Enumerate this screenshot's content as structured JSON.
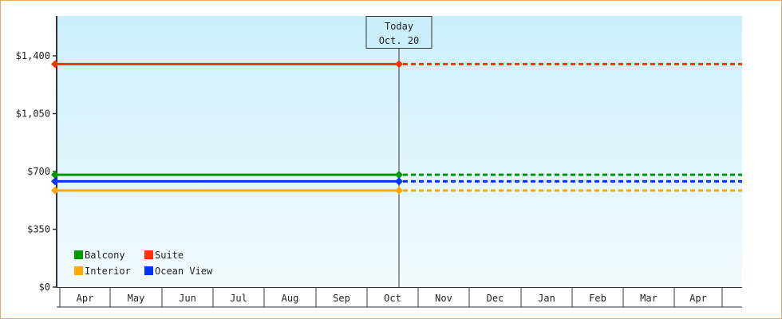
{
  "chart_data": {
    "type": "line",
    "title": "",
    "xlabel": "",
    "ylabel": "",
    "ylim": [
      0,
      1750
    ],
    "yticks": [
      0,
      350,
      700,
      1050,
      1400
    ],
    "ytick_labels": [
      "$0",
      "$350",
      "$700",
      "$1,050",
      "$1,400"
    ],
    "categories": [
      "Apr",
      "May",
      "Jun",
      "Jul",
      "Aug",
      "Sep",
      "Oct",
      "Nov",
      "Dec",
      "Jan",
      "Feb",
      "Mar",
      "Apr"
    ],
    "today": {
      "line1": "Today",
      "line2": "Oct. 20",
      "category_index": 6
    },
    "series": [
      {
        "name": "Suite",
        "color": "#ff3300",
        "value": 1350
      },
      {
        "name": "Balcony",
        "color": "#009900",
        "value": 680
      },
      {
        "name": "Ocean View",
        "color": "#0033ff",
        "value": 640
      },
      {
        "name": "Interior",
        "color": "#ffaa00",
        "value": 585
      }
    ],
    "line_style": {
      "past": "solid",
      "future": "dashed"
    },
    "legend_placement": "bottom-left",
    "legend_order": [
      "Balcony",
      "Suite",
      "Interior",
      "Ocean View"
    ],
    "background_gradient": [
      "#cceffc",
      "#f2fbff"
    ],
    "grid": false
  }
}
